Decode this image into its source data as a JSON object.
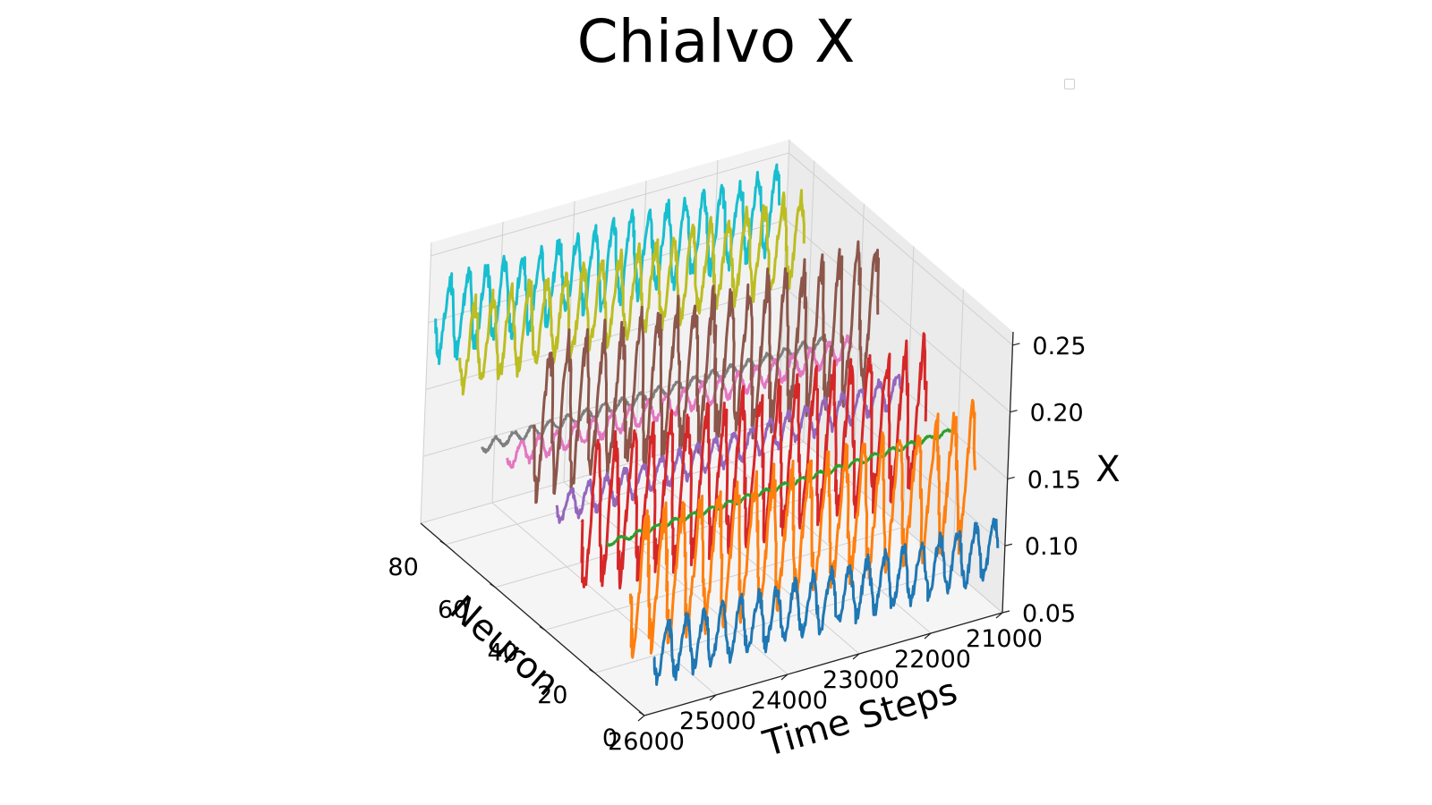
{
  "chart_data": {
    "type": "line",
    "projection": "3d",
    "title": "Chialvo X",
    "xlabel": "Time Steps",
    "ylabel": "Neuron",
    "zlabel": "X",
    "x_ticks": [
      21000,
      22000,
      23000,
      24000,
      25000,
      26000
    ],
    "y_ticks": [
      0,
      20,
      40,
      60,
      80
    ],
    "z_ticks": [
      "0.05",
      "0.10",
      "0.15",
      "0.20",
      "0.25"
    ],
    "xlim": [
      21000,
      26000
    ],
    "ylim": [
      0,
      90
    ],
    "zlim": [
      0.05,
      0.26
    ],
    "grid": true,
    "legend": {
      "entries": [],
      "location": "upper right"
    },
    "series": [
      {
        "neuron": 0,
        "color": "#1f77b4",
        "x_range": [
          21100,
          25900
        ],
        "mean": 0.098,
        "amplitude": 0.02,
        "oscillations": 19,
        "trend": 0.006
      },
      {
        "neuron": 10,
        "color": "#ff7f0e",
        "x_range": [
          21100,
          25900
        ],
        "mean": 0.135,
        "amplitude": 0.045,
        "oscillations": 19,
        "trend": 0.01
      },
      {
        "neuron": 20,
        "color": "#2ca02c",
        "x_range": [
          21100,
          25900
        ],
        "mean": 0.15,
        "amplitude": 0.002,
        "oscillations": 19,
        "trend": 0.01
      },
      {
        "neuron": 30,
        "color": "#d62728",
        "x_range": [
          21100,
          25900
        ],
        "mean": 0.15,
        "amplitude": 0.05,
        "oscillations": 19,
        "trend": 0.005
      },
      {
        "neuron": 40,
        "color": "#9467bd",
        "x_range": [
          21100,
          25900
        ],
        "mean": 0.147,
        "amplitude": 0.011,
        "oscillations": 19,
        "trend": 0.015
      },
      {
        "neuron": 50,
        "color": "#8c564b",
        "x_range": [
          21100,
          25900
        ],
        "mean": 0.19,
        "amplitude": 0.05,
        "oscillations": 19,
        "trend": 0.006
      },
      {
        "neuron": 60,
        "color": "#e377c2",
        "x_range": [
          21100,
          25900
        ],
        "mean": 0.15,
        "amplitude": 0.008,
        "oscillations": 19,
        "trend": 0.008
      },
      {
        "neuron": 70,
        "color": "#7f7f7f",
        "x_range": [
          21100,
          25900
        ],
        "mean": 0.14,
        "amplitude": 0.004,
        "oscillations": 19,
        "trend": 0.005
      },
      {
        "neuron": 80,
        "color": "#bcbd22",
        "x_range": [
          21100,
          25900
        ],
        "mean": 0.2,
        "amplitude": 0.03,
        "oscillations": 19,
        "trend": 0.01
      },
      {
        "neuron": 90,
        "color": "#17becf",
        "x_range": [
          21100,
          25900
        ],
        "mean": 0.205,
        "amplitude": 0.028,
        "oscillations": 19,
        "trend": 0.01
      }
    ]
  }
}
